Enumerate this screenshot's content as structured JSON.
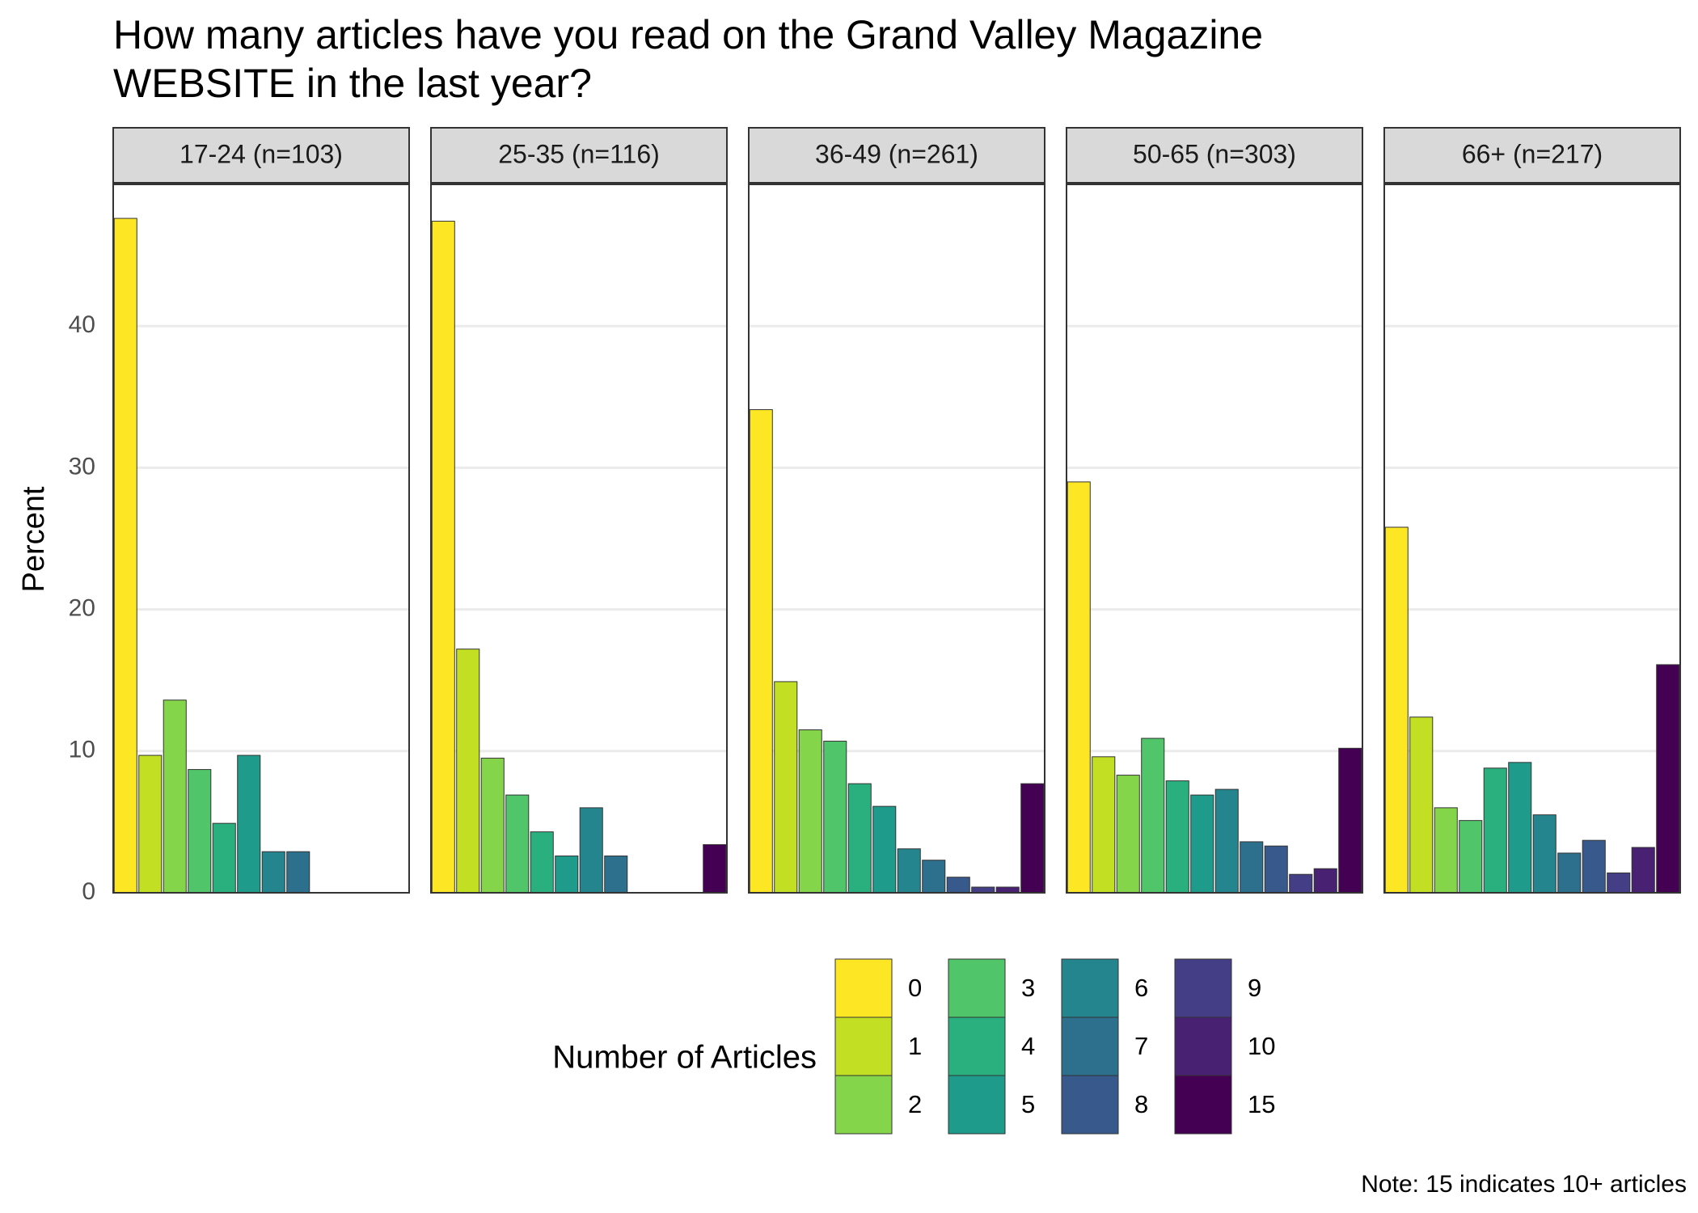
{
  "chart_data": {
    "type": "bar",
    "title_lines": [
      "How many articles have you read on the Grand Valley Magazine",
      "WEBSITE in the last year?"
    ],
    "ylabel": "Percent",
    "xlabel": "",
    "ylim": [
      0,
      50
    ],
    "y_ticks": [
      0,
      10,
      20,
      30,
      40
    ],
    "grid": true,
    "categories": [
      "0",
      "1",
      "2",
      "3",
      "4",
      "5",
      "6",
      "7",
      "8",
      "9",
      "10",
      "15"
    ],
    "legend": {
      "title": "Number of Articles",
      "position": "bottom",
      "labels": [
        "0",
        "1",
        "2",
        "3",
        "4",
        "5",
        "6",
        "7",
        "8",
        "9",
        "10",
        "15"
      ]
    },
    "colors": [
      "#FDE725",
      "#C2DF23",
      "#85D54A",
      "#51C56A",
      "#2AB07F",
      "#1E9B8A",
      "#25858E",
      "#2D708E",
      "#38598C",
      "#433E85",
      "#482173",
      "#440154"
    ],
    "panels": [
      {
        "label": "17-24 (n=103)",
        "values": [
          47.6,
          9.7,
          13.6,
          8.7,
          4.9,
          9.7,
          2.9,
          2.9,
          0,
          0,
          0,
          0
        ]
      },
      {
        "label": "25-35 (n=116)",
        "values": [
          47.4,
          17.2,
          9.5,
          6.9,
          4.3,
          2.6,
          6.0,
          2.6,
          0,
          0,
          0,
          3.4
        ]
      },
      {
        "label": "36-49 (n=261)",
        "values": [
          34.1,
          14.9,
          11.5,
          10.7,
          7.7,
          6.1,
          3.1,
          2.3,
          1.1,
          0.4,
          0.4,
          7.7
        ]
      },
      {
        "label": "50-65 (n=303)",
        "values": [
          29.0,
          9.6,
          8.3,
          10.9,
          7.9,
          6.9,
          7.3,
          3.6,
          3.3,
          1.3,
          1.7,
          10.2
        ]
      },
      {
        "label": "66+ (n=217)",
        "values": [
          25.8,
          12.4,
          6.0,
          5.1,
          8.8,
          9.2,
          5.5,
          2.8,
          3.7,
          1.4,
          3.2,
          16.1
        ]
      }
    ],
    "caption": "Note: 15 indicates 10+ articles"
  }
}
